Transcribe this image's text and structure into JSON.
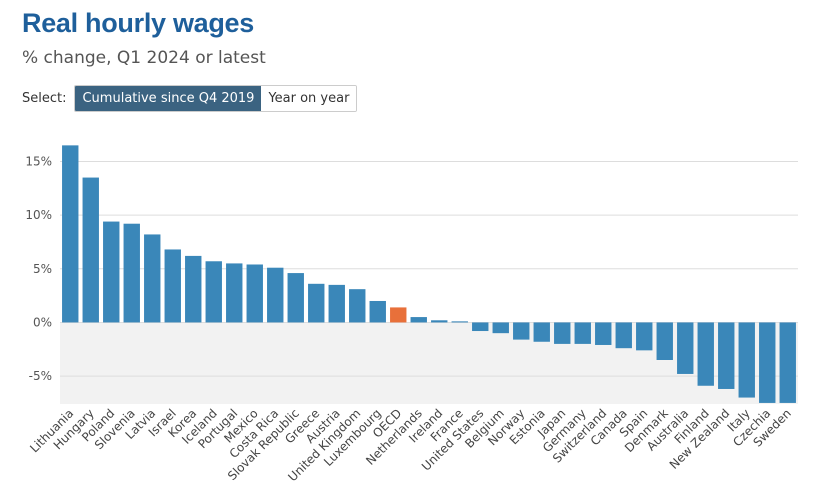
{
  "header": {
    "title": "Real hourly wages",
    "subtitle": "% change, Q1 2024 or latest"
  },
  "selector": {
    "label": "Select:",
    "options": [
      "Cumulative since Q4 2019",
      "Year on year"
    ],
    "selected": "Cumulative since Q4 2019"
  },
  "colors": {
    "bar": "#3a87b9",
    "highlight": "#e8703a",
    "negative_band": "#f2f2f2",
    "grid": "#dddddd"
  },
  "chart_data": {
    "type": "bar",
    "title": "Real hourly wages",
    "subtitle": "% change, Q1 2024 or latest",
    "xlabel": "",
    "ylabel": "",
    "ylim": [
      -7.6,
      17
    ],
    "yticks": [
      15,
      10,
      5,
      0,
      -5
    ],
    "ytick_labels": [
      "15%",
      "10%",
      "5%",
      "0%",
      "-5%"
    ],
    "grid": true,
    "highlight_category": "OECD",
    "categories": [
      "Lithuania",
      "Hungary",
      "Poland",
      "Slovenia",
      "Latvia",
      "Israel",
      "Korea",
      "Iceland",
      "Portugal",
      "Mexico",
      "Costa Rica",
      "Slovak Republic",
      "Greece",
      "Austria",
      "United Kingdom",
      "Luxembourg",
      "OECD",
      "Netherlands",
      "Ireland",
      "France",
      "United States",
      "Belgium",
      "Norway",
      "Estonia",
      "Japan",
      "Germany",
      "Switzerland",
      "Canada",
      "Spain",
      "Denmark",
      "Australia",
      "Finland",
      "New Zealand",
      "Italy",
      "Czechia",
      "Sweden"
    ],
    "values": [
      16.5,
      13.5,
      9.4,
      9.2,
      8.2,
      6.8,
      6.2,
      5.7,
      5.5,
      5.4,
      5.1,
      4.6,
      3.6,
      3.5,
      3.1,
      2.0,
      1.4,
      0.5,
      0.2,
      0.1,
      -0.8,
      -1.0,
      -1.6,
      -1.8,
      -2.0,
      -2.0,
      -2.1,
      -2.4,
      -2.6,
      -3.5,
      -4.8,
      -5.9,
      -6.2,
      -7.0,
      -7.5,
      -7.5
    ]
  }
}
